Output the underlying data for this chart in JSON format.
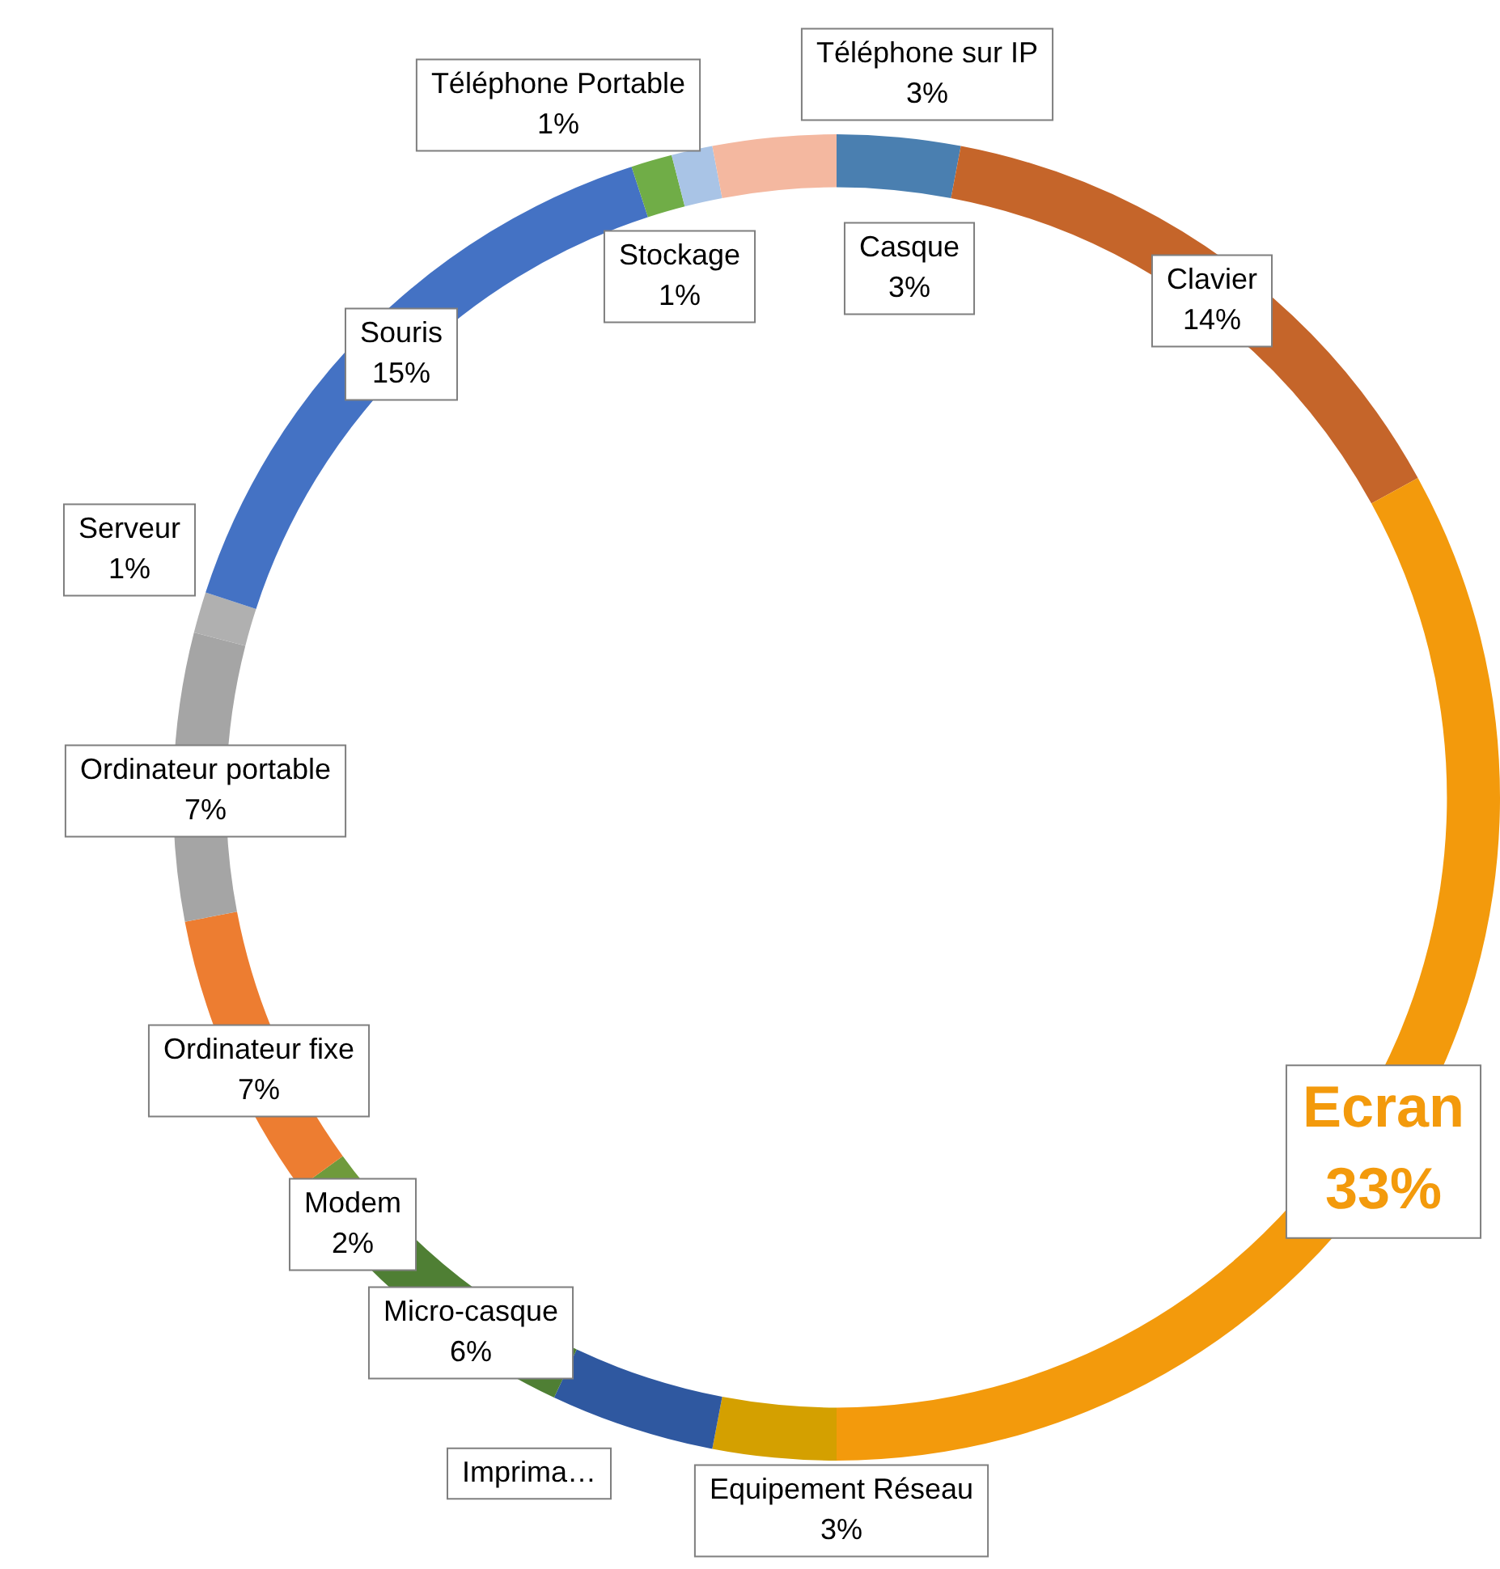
{
  "chart_data": {
    "type": "donut",
    "categories": [
      "Casque",
      "Clavier",
      "Ecran",
      "Equipement Réseau",
      "Imprima…",
      "Micro-casque",
      "Modem",
      "Ordinateur fixe",
      "Ordinateur portable",
      "Serveur",
      "Souris",
      "Stockage",
      "Téléphone Portable",
      "Téléphone sur IP"
    ],
    "values": [
      3,
      14,
      33,
      3,
      4,
      6,
      2,
      7,
      7,
      1,
      15,
      1,
      1,
      3
    ],
    "value_labels": [
      "3%",
      "14%",
      "33%",
      "3%",
      null,
      "6%",
      "2%",
      "7%",
      "7%",
      "1%",
      "15%",
      "1%",
      "1%",
      "3%"
    ],
    "colors": [
      "#4a7fb0",
      "#c5652a",
      "#f39a0c",
      "#d4a000",
      "#2f58a0",
      "#4f7f34",
      "#6f9a3c",
      "#ed7d31",
      "#a5a5a5",
      "#b0b0b0",
      "#4472c4",
      "#70ad47",
      "#a9c4e6",
      "#f4b8a0"
    ],
    "legend": false
  }
}
